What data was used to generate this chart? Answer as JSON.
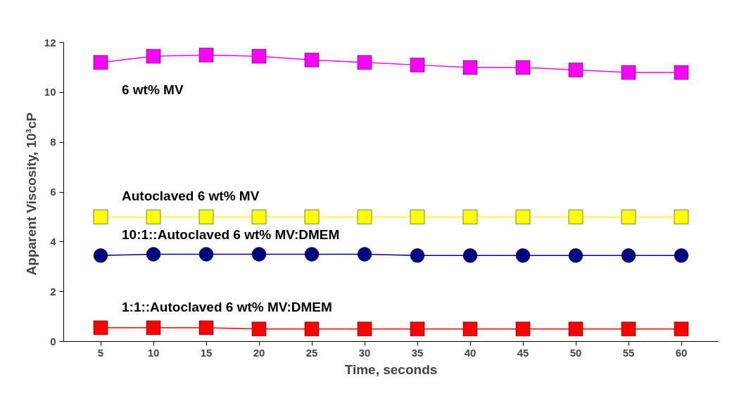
{
  "chart_data": {
    "type": "line",
    "xlabel": "Time, seconds",
    "ylabel": "Apparent Viscosity,  10³cP",
    "categories": [
      "5",
      "10",
      "15",
      "20",
      "25",
      "30",
      "35",
      "40",
      "45",
      "50",
      "55",
      "60"
    ],
    "ylim": [
      0,
      12
    ],
    "yticks": [
      0,
      2,
      4,
      6,
      8,
      10,
      12
    ],
    "grid": false,
    "legend": false,
    "marker": "square",
    "series": [
      {
        "name": "6 wt% MV",
        "color": "#ff00ff",
        "values": [
          11.2,
          11.45,
          11.5,
          11.45,
          11.3,
          11.2,
          11.1,
          11.0,
          11.0,
          10.9,
          10.8,
          10.8
        ]
      },
      {
        "name": "Autoclaved 6 wt% MV",
        "color": "#ffff00",
        "values": [
          5.0,
          5.0,
          5.0,
          5.0,
          5.0,
          5.0,
          5.0,
          5.0,
          5.0,
          5.0,
          5.0,
          5.0
        ]
      },
      {
        "name": "10:1::Autoclaved 6 wt% MV:DMEM",
        "color": "#000080",
        "marker": "circle",
        "values": [
          3.45,
          3.5,
          3.5,
          3.5,
          3.5,
          3.5,
          3.45,
          3.45,
          3.45,
          3.45,
          3.45,
          3.45
        ]
      },
      {
        "name": "1:1::Autoclaved 6 wt% MV:DMEM",
        "color": "#ff0000",
        "values": [
          0.55,
          0.55,
          0.55,
          0.5,
          0.5,
          0.5,
          0.5,
          0.5,
          0.5,
          0.5,
          0.5,
          0.5
        ]
      }
    ]
  }
}
